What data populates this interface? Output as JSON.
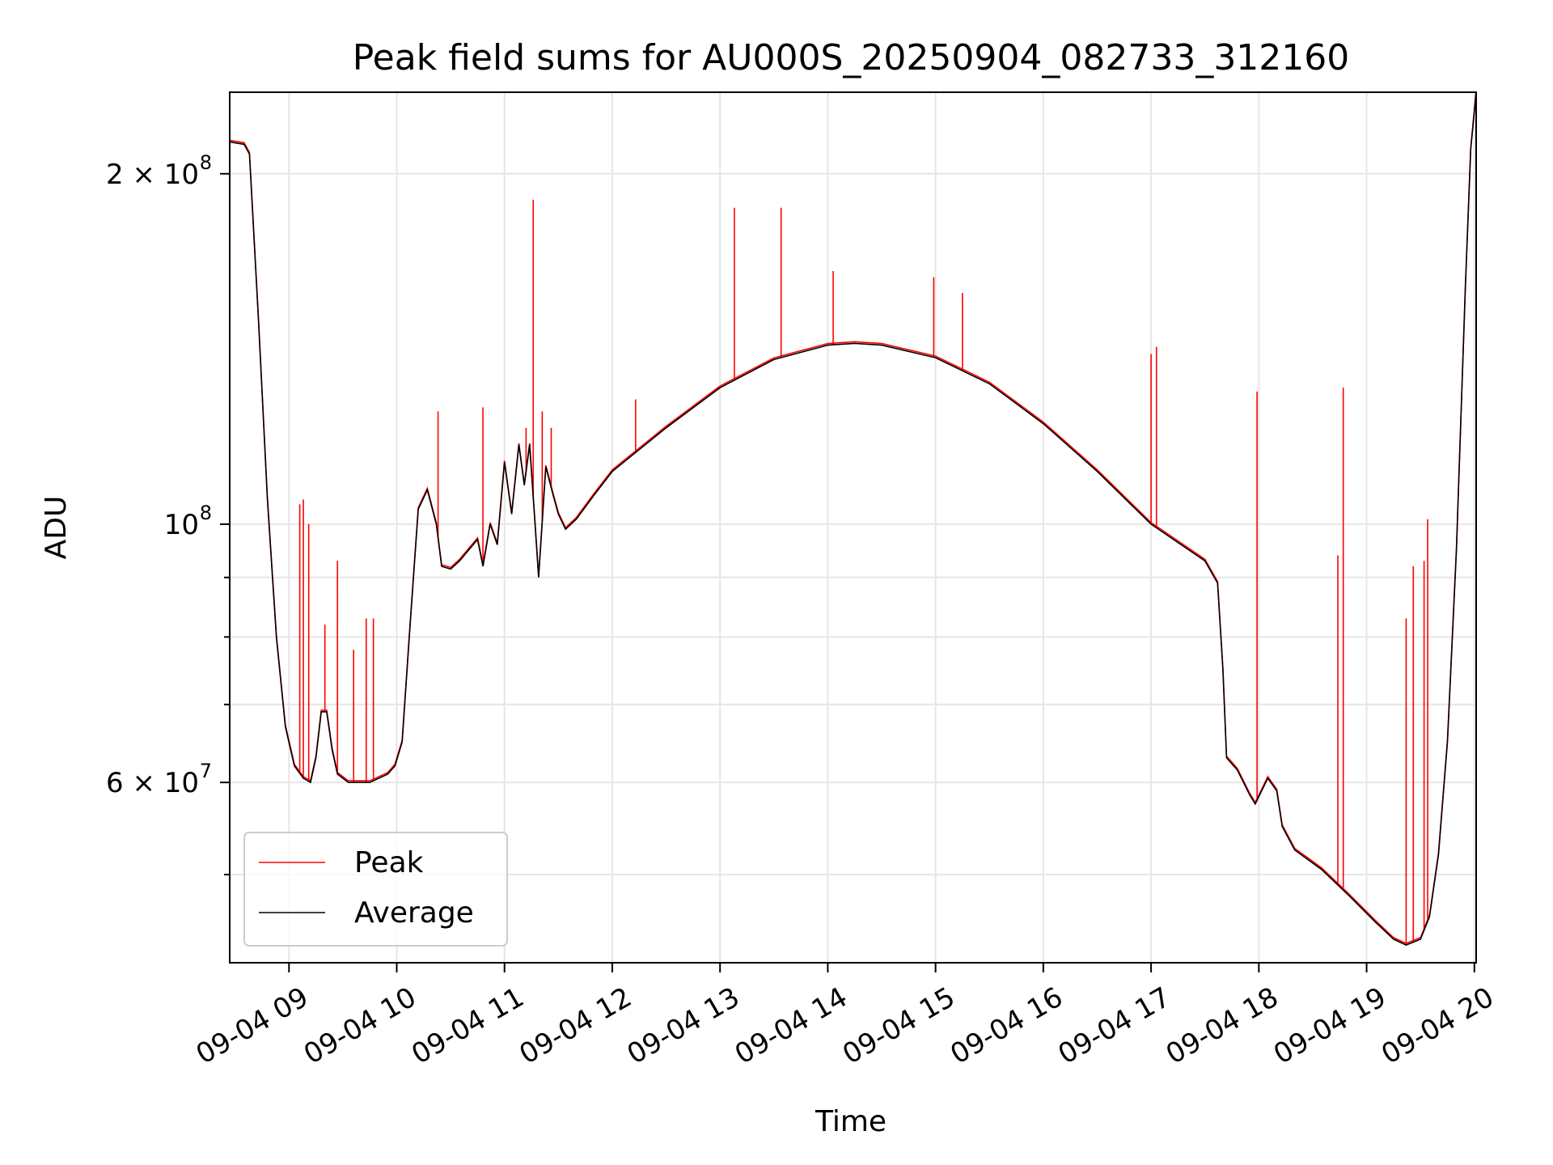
{
  "chart_data": {
    "type": "line",
    "title": "Peak field sums for AU000S_20250904_082733_312160",
    "xlabel": "Time",
    "ylabel": "ADU",
    "y_scale": "log",
    "ylim": [
      42000000,
      235000000
    ],
    "xlim": [
      "2025-09-04 08:27",
      "2025-09-04 20:01"
    ],
    "grid": true,
    "legend_position": "lower-left",
    "colors": {
      "Peak": "#ff0000",
      "Average": "#000000",
      "grid": "#e6e6e6"
    },
    "x_ticks": [
      {
        "label": "09-04 09",
        "t": "2025-09-04 09:00"
      },
      {
        "label": "09-04 10",
        "t": "2025-09-04 10:00"
      },
      {
        "label": "09-04 11",
        "t": "2025-09-04 11:00"
      },
      {
        "label": "09-04 12",
        "t": "2025-09-04 12:00"
      },
      {
        "label": "09-04 13",
        "t": "2025-09-04 13:00"
      },
      {
        "label": "09-04 14",
        "t": "2025-09-04 14:00"
      },
      {
        "label": "09-04 15",
        "t": "2025-09-04 15:00"
      },
      {
        "label": "09-04 16",
        "t": "2025-09-04 16:00"
      },
      {
        "label": "09-04 17",
        "t": "2025-09-04 17:00"
      },
      {
        "label": "09-04 18",
        "t": "2025-09-04 18:00"
      },
      {
        "label": "09-04 19",
        "t": "2025-09-04 19:00"
      },
      {
        "label": "09-04 20",
        "t": "2025-09-04 20:00"
      }
    ],
    "y_ticks_major": [
      {
        "base": "6 × 10",
        "exp": "7",
        "value": 60000000
      },
      {
        "base": "10",
        "exp": "8",
        "value": 100000000
      },
      {
        "base": "2 × 10",
        "exp": "8",
        "value": 200000000
      }
    ],
    "y_ticks_minor": [
      50000000,
      70000000,
      80000000,
      90000000
    ],
    "series": [
      {
        "name": "Average",
        "color": "#000000",
        "points": [
          [
            "2025-09-04 08:27",
            213000000
          ],
          [
            "2025-09-04 08:35",
            212000000
          ],
          [
            "2025-09-04 08:38",
            208000000
          ],
          [
            "2025-09-04 08:43",
            150000000
          ],
          [
            "2025-09-04 08:48",
            105000000
          ],
          [
            "2025-09-04 08:53",
            80000000
          ],
          [
            "2025-09-04 08:58",
            67000000
          ],
          [
            "2025-09-04 09:03",
            62000000
          ],
          [
            "2025-09-04 09:08",
            60500000
          ],
          [
            "2025-09-04 09:12",
            60000000
          ],
          [
            "2025-09-04 09:15",
            63000000
          ],
          [
            "2025-09-04 09:18",
            69000000
          ],
          [
            "2025-09-04 09:21",
            69000000
          ],
          [
            "2025-09-04 09:24",
            64000000
          ],
          [
            "2025-09-04 09:27",
            61000000
          ],
          [
            "2025-09-04 09:33",
            60000000
          ],
          [
            "2025-09-04 09:45",
            60000000
          ],
          [
            "2025-09-04 09:55",
            61000000
          ],
          [
            "2025-09-04 09:59",
            62000000
          ],
          [
            "2025-09-04 10:03",
            65000000
          ],
          [
            "2025-09-04 10:07",
            80000000
          ],
          [
            "2025-09-04 10:12",
            103000000
          ],
          [
            "2025-09-04 10:17",
            107000000
          ],
          [
            "2025-09-04 10:22",
            100000000
          ],
          [
            "2025-09-04 10:25",
            92000000
          ],
          [
            "2025-09-04 10:30",
            91500000
          ],
          [
            "2025-09-04 10:35",
            93000000
          ],
          [
            "2025-09-04 10:40",
            95000000
          ],
          [
            "2025-09-04 10:45",
            97000000
          ],
          [
            "2025-09-04 10:48",
            92000000
          ],
          [
            "2025-09-04 10:52",
            100000000
          ],
          [
            "2025-09-04 10:56",
            96000000
          ],
          [
            "2025-09-04 11:00",
            113000000
          ],
          [
            "2025-09-04 11:04",
            102000000
          ],
          [
            "2025-09-04 11:08",
            117000000
          ],
          [
            "2025-09-04 11:11",
            108000000
          ],
          [
            "2025-09-04 11:14",
            117000000
          ],
          [
            "2025-09-04 11:17",
            100000000
          ],
          [
            "2025-09-04 11:19",
            90000000
          ],
          [
            "2025-09-04 11:23",
            112000000
          ],
          [
            "2025-09-04 11:27",
            106000000
          ],
          [
            "2025-09-04 11:30",
            102000000
          ],
          [
            "2025-09-04 11:34",
            99000000
          ],
          [
            "2025-09-04 11:40",
            101000000
          ],
          [
            "2025-09-04 11:50",
            106000000
          ],
          [
            "2025-09-04 12:00",
            111000000
          ],
          [
            "2025-09-04 12:30",
            121000000
          ],
          [
            "2025-09-04 13:00",
            131000000
          ],
          [
            "2025-09-04 13:30",
            138500000
          ],
          [
            "2025-09-04 14:00",
            142500000
          ],
          [
            "2025-09-04 14:15",
            143000000
          ],
          [
            "2025-09-04 14:30",
            142500000
          ],
          [
            "2025-09-04 15:00",
            139000000
          ],
          [
            "2025-09-04 15:30",
            132000000
          ],
          [
            "2025-09-04 16:00",
            122000000
          ],
          [
            "2025-09-04 16:30",
            111000000
          ],
          [
            "2025-09-04 17:00",
            100000000
          ],
          [
            "2025-09-04 17:30",
            93000000
          ],
          [
            "2025-09-04 17:37",
            89000000
          ],
          [
            "2025-09-04 17:40",
            75000000
          ],
          [
            "2025-09-04 17:42",
            63000000
          ],
          [
            "2025-09-04 17:48",
            61500000
          ],
          [
            "2025-09-04 17:55",
            58500000
          ],
          [
            "2025-09-04 17:58",
            57500000
          ],
          [
            "2025-09-04 18:05",
            60500000
          ],
          [
            "2025-09-04 18:10",
            59000000
          ],
          [
            "2025-09-04 18:13",
            55000000
          ],
          [
            "2025-09-04 18:20",
            52500000
          ],
          [
            "2025-09-04 18:35",
            50500000
          ],
          [
            "2025-09-04 18:50",
            48000000
          ],
          [
            "2025-09-04 19:05",
            45500000
          ],
          [
            "2025-09-04 19:15",
            44000000
          ],
          [
            "2025-09-04 19:22",
            43500000
          ],
          [
            "2025-09-04 19:30",
            44000000
          ],
          [
            "2025-09-04 19:35",
            46000000
          ],
          [
            "2025-09-04 19:40",
            52000000
          ],
          [
            "2025-09-04 19:45",
            65000000
          ],
          [
            "2025-09-04 19:50",
            95000000
          ],
          [
            "2025-09-04 19:55",
            160000000
          ],
          [
            "2025-09-04 19:58",
            210000000
          ],
          [
            "2025-09-04 20:01",
            235000000
          ]
        ]
      },
      {
        "name": "Peak",
        "color": "#ff0000",
        "spikes": [
          [
            "2025-09-04 09:06",
            104000000
          ],
          [
            "2025-09-04 09:08",
            105000000
          ],
          [
            "2025-09-04 09:11",
            100000000
          ],
          [
            "2025-09-04 09:20",
            82000000
          ],
          [
            "2025-09-04 09:27",
            93000000
          ],
          [
            "2025-09-04 09:36",
            78000000
          ],
          [
            "2025-09-04 09:43",
            83000000
          ],
          [
            "2025-09-04 09:47",
            83000000
          ],
          [
            "2025-09-04 10:23",
            125000000
          ],
          [
            "2025-09-04 10:48",
            126000000
          ],
          [
            "2025-09-04 11:12",
            121000000
          ],
          [
            "2025-09-04 11:16",
            190000000
          ],
          [
            "2025-09-04 11:21",
            125000000
          ],
          [
            "2025-09-04 11:26",
            121000000
          ],
          [
            "2025-09-04 12:13",
            128000000
          ],
          [
            "2025-09-04 13:08",
            187000000
          ],
          [
            "2025-09-04 13:34",
            187000000
          ],
          [
            "2025-09-04 14:03",
            165000000
          ],
          [
            "2025-09-04 14:59",
            163000000
          ],
          [
            "2025-09-04 15:15",
            158000000
          ],
          [
            "2025-09-04 17:00",
            140000000
          ],
          [
            "2025-09-04 17:03",
            142000000
          ],
          [
            "2025-09-04 17:59",
            130000000
          ],
          [
            "2025-09-04 18:44",
            94000000
          ],
          [
            "2025-09-04 18:47",
            131000000
          ],
          [
            "2025-09-04 19:22",
            83000000
          ],
          [
            "2025-09-04 19:26",
            92000000
          ],
          [
            "2025-09-04 19:32",
            93000000
          ],
          [
            "2025-09-04 19:34",
            101000000
          ]
        ]
      }
    ]
  }
}
